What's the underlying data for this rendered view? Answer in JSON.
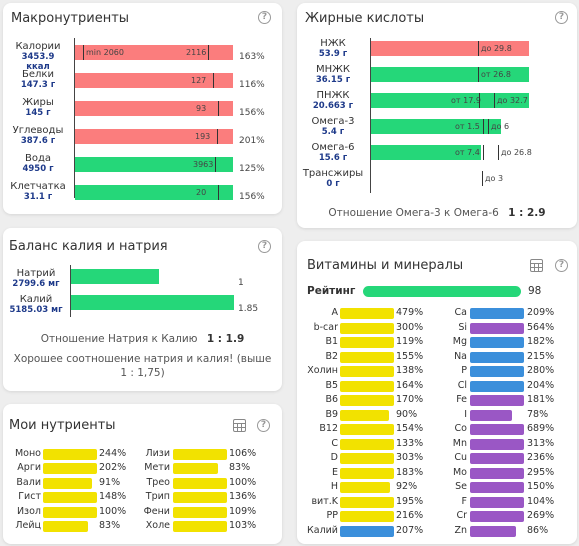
{
  "colors": {
    "over": "#fb7d7d",
    "good": "#25d779",
    "yellow": "#f2e200",
    "blue": "#3b8fdb",
    "purple": "#9a57c5",
    "rating": "#25d779"
  },
  "macro": {
    "title": "Макронутриенты",
    "help_icon": "?",
    "items": [
      {
        "name": "Калории",
        "value": "3453.9",
        "unit": "ккал",
        "fill": "#fb7d7d",
        "m1": "min 2060",
        "m2": "2116",
        "pct": "163%"
      },
      {
        "name": "Белки",
        "value": "147.3 г",
        "fill": "#fb7d7d",
        "m2": "127",
        "pct": "116%"
      },
      {
        "name": "Жиры",
        "value": "145 г",
        "fill": "#fb7d7d",
        "m2": "93",
        "pct": "156%"
      },
      {
        "name": "Углеводы",
        "value": "387.6 г",
        "fill": "#fb7d7d",
        "m2": "193",
        "pct": "201%"
      },
      {
        "name": "Вода",
        "value": "4950 г",
        "fill": "#25d779",
        "m2": "3963",
        "pct": "125%"
      },
      {
        "name": "Клетчатка",
        "value": "31.1 г",
        "fill": "#25d779",
        "m2": "20",
        "pct": "156%"
      }
    ]
  },
  "fatty": {
    "title": "Жирные кислоты",
    "help_icon": "?",
    "items": [
      {
        "name": "НЖК",
        "value": "53.9 г",
        "fill": "#fb7d7d",
        "m2": "до 29.8"
      },
      {
        "name": "МНЖК",
        "value": "36.15 г",
        "fill": "#25d779",
        "m2": "от 26.8"
      },
      {
        "name": "ПНЖК",
        "value": "20.663 г",
        "fill": "#25d779",
        "m1": "от 17.9",
        "m2": "до 32.7"
      },
      {
        "name": "Омега-3",
        "value": "5.4 г",
        "fill": "#25d779",
        "m1": "от 1.5",
        "m2": "до 6"
      },
      {
        "name": "Омега-6",
        "value": "15.6 г",
        "fill": "#25d779",
        "m1": "от 7.4",
        "m2": "до 26.8"
      },
      {
        "name": "Трансжиры",
        "value": "0 г",
        "fill": "",
        "m2": "до 3"
      }
    ],
    "ratio_label": "Отношение Омега-3 к Омега-6",
    "ratio_value": "1 : 2.9"
  },
  "potassium": {
    "title": "Баланс калия и натрия",
    "help_icon": "?",
    "items": [
      {
        "name": "Натрий",
        "value": "2799.6 мг",
        "fill": "#25d779",
        "ratio": "1"
      },
      {
        "name": "Калий",
        "value": "5185.03 мг",
        "fill": "#25d779",
        "ratio": "1.85"
      }
    ],
    "ratio_label": "Отношение Натрия к Калию",
    "ratio_value": "1 : 1.9",
    "msg_line1": "Хорошее соотношение натрия и калия! (выше",
    "msg_line2": "1 : 1,75)"
  },
  "mynutr": {
    "title": "Мои нутриенты",
    "grid_icon": "table-icon",
    "help_icon": "?",
    "left": [
      {
        "name": "Моно",
        "pct": "244%",
        "color": "#f2e200"
      },
      {
        "name": "Арги",
        "pct": "202%",
        "color": "#f2e200"
      },
      {
        "name": "Вали",
        "pct": "91%",
        "color": "#f2e200"
      },
      {
        "name": "Гист",
        "pct": "148%",
        "color": "#f2e200"
      },
      {
        "name": "Изол",
        "pct": "100%",
        "color": "#f2e200"
      },
      {
        "name": "Лейц",
        "pct": "83%",
        "color": "#f2e200"
      }
    ],
    "right": [
      {
        "name": "Лизи",
        "pct": "106%",
        "color": "#f2e200"
      },
      {
        "name": "Мети",
        "pct": "83%",
        "color": "#f2e200"
      },
      {
        "name": "Трео",
        "pct": "100%",
        "color": "#f2e200"
      },
      {
        "name": "Трип",
        "pct": "136%",
        "color": "#f2e200"
      },
      {
        "name": "Фени",
        "pct": "109%",
        "color": "#f2e200"
      },
      {
        "name": "Холе",
        "pct": "103%",
        "color": "#f2e200"
      }
    ]
  },
  "vitamins": {
    "title": "Витамины и минералы",
    "grid_icon": "table-icon",
    "help_icon": "?",
    "rating_label": "Рейтинг",
    "rating_value": "98",
    "left": [
      {
        "name": "A",
        "pct": "479%",
        "color": "#f2e200"
      },
      {
        "name": "b-car",
        "pct": "300%",
        "color": "#f2e200"
      },
      {
        "name": "B1",
        "pct": "119%",
        "color": "#f2e200"
      },
      {
        "name": "B2",
        "pct": "155%",
        "color": "#f2e200"
      },
      {
        "name": "Холин",
        "pct": "138%",
        "color": "#f2e200"
      },
      {
        "name": "B5",
        "pct": "164%",
        "color": "#f2e200"
      },
      {
        "name": "B6",
        "pct": "170%",
        "color": "#f2e200"
      },
      {
        "name": "B9",
        "pct": "90%",
        "color": "#f2e200"
      },
      {
        "name": "B12",
        "pct": "154%",
        "color": "#f2e200"
      },
      {
        "name": "C",
        "pct": "133%",
        "color": "#f2e200"
      },
      {
        "name": "D",
        "pct": "303%",
        "color": "#f2e200"
      },
      {
        "name": "E",
        "pct": "183%",
        "color": "#f2e200"
      },
      {
        "name": "H",
        "pct": "92%",
        "color": "#f2e200"
      },
      {
        "name": "вит.K",
        "pct": "195%",
        "color": "#f2e200"
      },
      {
        "name": "PP",
        "pct": "216%",
        "color": "#f2e200"
      },
      {
        "name": "Калий",
        "pct": "207%",
        "color": "#3b8fdb"
      }
    ],
    "right": [
      {
        "name": "Ca",
        "pct": "209%",
        "color": "#3b8fdb"
      },
      {
        "name": "Si",
        "pct": "564%",
        "color": "#9a57c5"
      },
      {
        "name": "Mg",
        "pct": "182%",
        "color": "#3b8fdb"
      },
      {
        "name": "Na",
        "pct": "215%",
        "color": "#3b8fdb"
      },
      {
        "name": "P",
        "pct": "280%",
        "color": "#3b8fdb"
      },
      {
        "name": "Cl",
        "pct": "204%",
        "color": "#3b8fdb"
      },
      {
        "name": "Fe",
        "pct": "181%",
        "color": "#9a57c5"
      },
      {
        "name": "I",
        "pct": "78%",
        "color": "#9a57c5"
      },
      {
        "name": "Co",
        "pct": "689%",
        "color": "#9a57c5"
      },
      {
        "name": "Mn",
        "pct": "313%",
        "color": "#9a57c5"
      },
      {
        "name": "Cu",
        "pct": "236%",
        "color": "#9a57c5"
      },
      {
        "name": "Mo",
        "pct": "295%",
        "color": "#9a57c5"
      },
      {
        "name": "Se",
        "pct": "150%",
        "color": "#9a57c5"
      },
      {
        "name": "F",
        "pct": "104%",
        "color": "#9a57c5"
      },
      {
        "name": "Cr",
        "pct": "269%",
        "color": "#9a57c5"
      },
      {
        "name": "Zn",
        "pct": "86%",
        "color": "#9a57c5"
      }
    ]
  }
}
